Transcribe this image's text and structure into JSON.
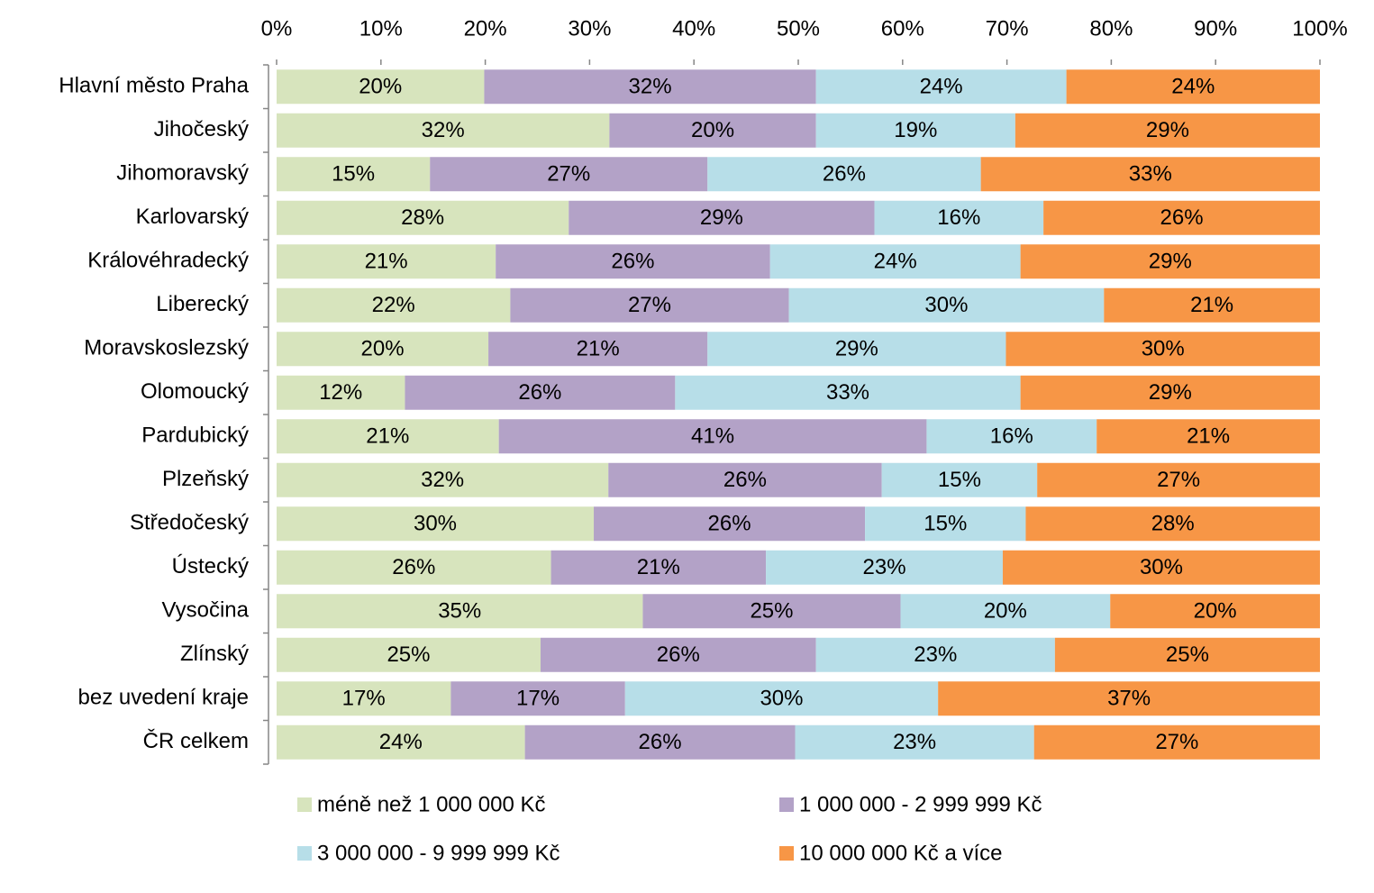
{
  "chart_data": {
    "type": "stacked-bar-horizontal",
    "categories": [
      "Hlavní město Praha",
      "Jihočeský",
      "Jihomoravský",
      "Karlovarský",
      "Královéhradecký",
      "Liberecký",
      "Moravskoslezský",
      "Olomoucký",
      "Pardubický",
      "Plzeňský",
      "Středočeský",
      "Ústecký",
      "Vysočina",
      "Zlínský",
      "bez uvedení kraje",
      "ČR celkem"
    ],
    "series": [
      {
        "name": "méně než 1 000 000 Kč",
        "color": "#d7e4bd",
        "values": [
          19.9,
          31.9,
          14.7,
          28.0,
          21.0,
          22.4,
          20.3,
          12.3,
          21.3,
          31.8,
          30.4,
          26.3,
          35.1,
          25.3,
          16.7,
          23.8
        ],
        "value_labels": [
          "20%",
          "32%",
          "15%",
          "28%",
          "21%",
          "22%",
          "20%",
          "12%",
          "21%",
          "32%",
          "30%",
          "26%",
          "35%",
          "25%",
          "17%",
          "24%"
        ]
      },
      {
        "name": "1 000 000 - 2 999 999 Kč",
        "color": "#b3a2c7",
        "values": [
          31.8,
          19.8,
          26.6,
          29.3,
          26.3,
          26.7,
          21.0,
          25.9,
          41.0,
          26.2,
          26.0,
          20.6,
          24.7,
          26.4,
          16.7,
          25.9
        ],
        "value_labels": [
          "32%",
          "20%",
          "27%",
          "29%",
          "26%",
          "27%",
          "21%",
          "26%",
          "41%",
          "26%",
          "26%",
          "21%",
          "25%",
          "26%",
          "17%",
          "26%"
        ]
      },
      {
        "name": "3 000 000 - 9 999 999 Kč",
        "color": "#b7dee8",
        "values": [
          24.0,
          19.1,
          26.2,
          16.2,
          24.0,
          30.2,
          28.6,
          33.1,
          16.3,
          14.9,
          15.4,
          22.7,
          20.1,
          22.9,
          30.0,
          22.9
        ],
        "value_labels": [
          "24%",
          "19%",
          "26%",
          "16%",
          "24%",
          "30%",
          "29%",
          "33%",
          "16%",
          "15%",
          "15%",
          "23%",
          "20%",
          "23%",
          "30%",
          "23%"
        ]
      },
      {
        "name": "10 000 000 Kč a více",
        "color": "#f79646",
        "values": [
          24.3,
          29.2,
          32.5,
          26.5,
          28.7,
          20.7,
          30.1,
          28.7,
          21.4,
          27.1,
          28.2,
          30.4,
          20.1,
          25.4,
          36.6,
          27.4
        ],
        "value_labels": [
          "24%",
          "29%",
          "33%",
          "26%",
          "29%",
          "21%",
          "30%",
          "29%",
          "21%",
          "27%",
          "28%",
          "30%",
          "20%",
          "25%",
          "37%",
          "27%"
        ]
      }
    ],
    "xlim": [
      0,
      100
    ],
    "xticks": [
      {
        "value": 0,
        "label": "0%"
      },
      {
        "value": 10,
        "label": "10%"
      },
      {
        "value": 20,
        "label": "20%"
      },
      {
        "value": 30,
        "label": "30%"
      },
      {
        "value": 40,
        "label": "40%"
      },
      {
        "value": 50,
        "label": "50%"
      },
      {
        "value": 60,
        "label": "60%"
      },
      {
        "value": 70,
        "label": "70%"
      },
      {
        "value": 80,
        "label": "80%"
      },
      {
        "value": 90,
        "label": "90%"
      },
      {
        "value": 100,
        "label": "100%"
      }
    ],
    "grid": false,
    "legend": "bottom"
  }
}
